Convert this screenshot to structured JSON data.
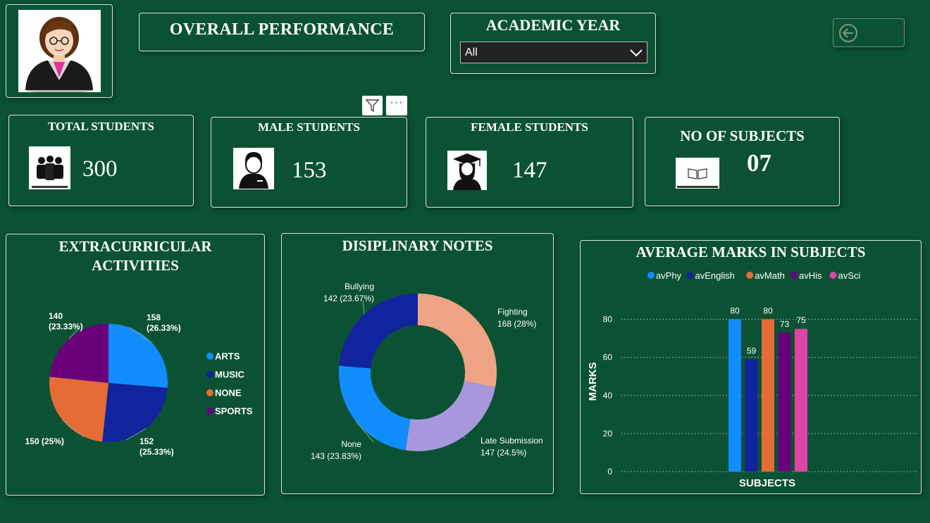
{
  "header": {
    "title": "OVERALL PERFORMANCE"
  },
  "filter": {
    "label": "ACADEMIC YEAR",
    "selected": "All"
  },
  "kpis": {
    "total": {
      "label": "TOTAL STUDENTS",
      "value": "300"
    },
    "male": {
      "label": "MALE STUDENTS",
      "value": "153"
    },
    "female": {
      "label": "FEMALE STUDENTS",
      "value": "147"
    },
    "subjects": {
      "label": "NO OF SUBJECTS",
      "value": "07"
    }
  },
  "toolbar": {
    "more": "···"
  },
  "colors": {
    "background": "#0b5234",
    "arts": "#118dff",
    "music": "#12239e",
    "none": "#e66c37",
    "sports": "#6b007b",
    "fighting": "#eea484",
    "late": "#a997dd",
    "sci": "#e044a7"
  },
  "chart_data": [
    {
      "type": "pie",
      "title": "EXTRACURRICULAR ACTIVITIES",
      "title_lines": [
        "EXTRACURRICULAR",
        "ACTIVITIES"
      ],
      "legend_position": "right",
      "categories": [
        "ARTS",
        "MUSIC",
        "NONE",
        "SPORTS"
      ],
      "values": [
        158,
        152,
        150,
        140
      ],
      "value_labels": [
        "158",
        "152",
        "150 (25%)",
        "140"
      ],
      "percent_labels": [
        "(26.33%)",
        "(25.33%)",
        "",
        "(23.33%)"
      ]
    },
    {
      "type": "pie",
      "subtype": "donut",
      "title": "DISIPLINARY NOTES",
      "categories": [
        "Fighting",
        "Late Submission",
        "None",
        "Bullying"
      ],
      "values": [
        168,
        147,
        143,
        142
      ],
      "value_labels": [
        "168 (28%)",
        "147 (24.5%)",
        "143 (23.83%)",
        "142 (23.67%)"
      ]
    },
    {
      "type": "bar",
      "title": "AVERAGE MARKS IN SUBJECTS",
      "xlabel": "SUBJECTS",
      "ylabel": "MARKS",
      "legend_position": "top",
      "categories": [
        ""
      ],
      "series": [
        {
          "name": "avPhy",
          "values": [
            80
          ],
          "label": "80"
        },
        {
          "name": "avEnglish",
          "values": [
            59
          ],
          "label": "59"
        },
        {
          "name": "avMath",
          "values": [
            80
          ],
          "label": "80"
        },
        {
          "name": "avHis",
          "values": [
            73
          ],
          "label": "73"
        },
        {
          "name": "avSci",
          "values": [
            75
          ],
          "label": "75"
        }
      ],
      "yticks": [
        "0",
        "20",
        "40",
        "60",
        "80"
      ],
      "ylim": [
        0,
        88
      ],
      "grid": true
    }
  ]
}
